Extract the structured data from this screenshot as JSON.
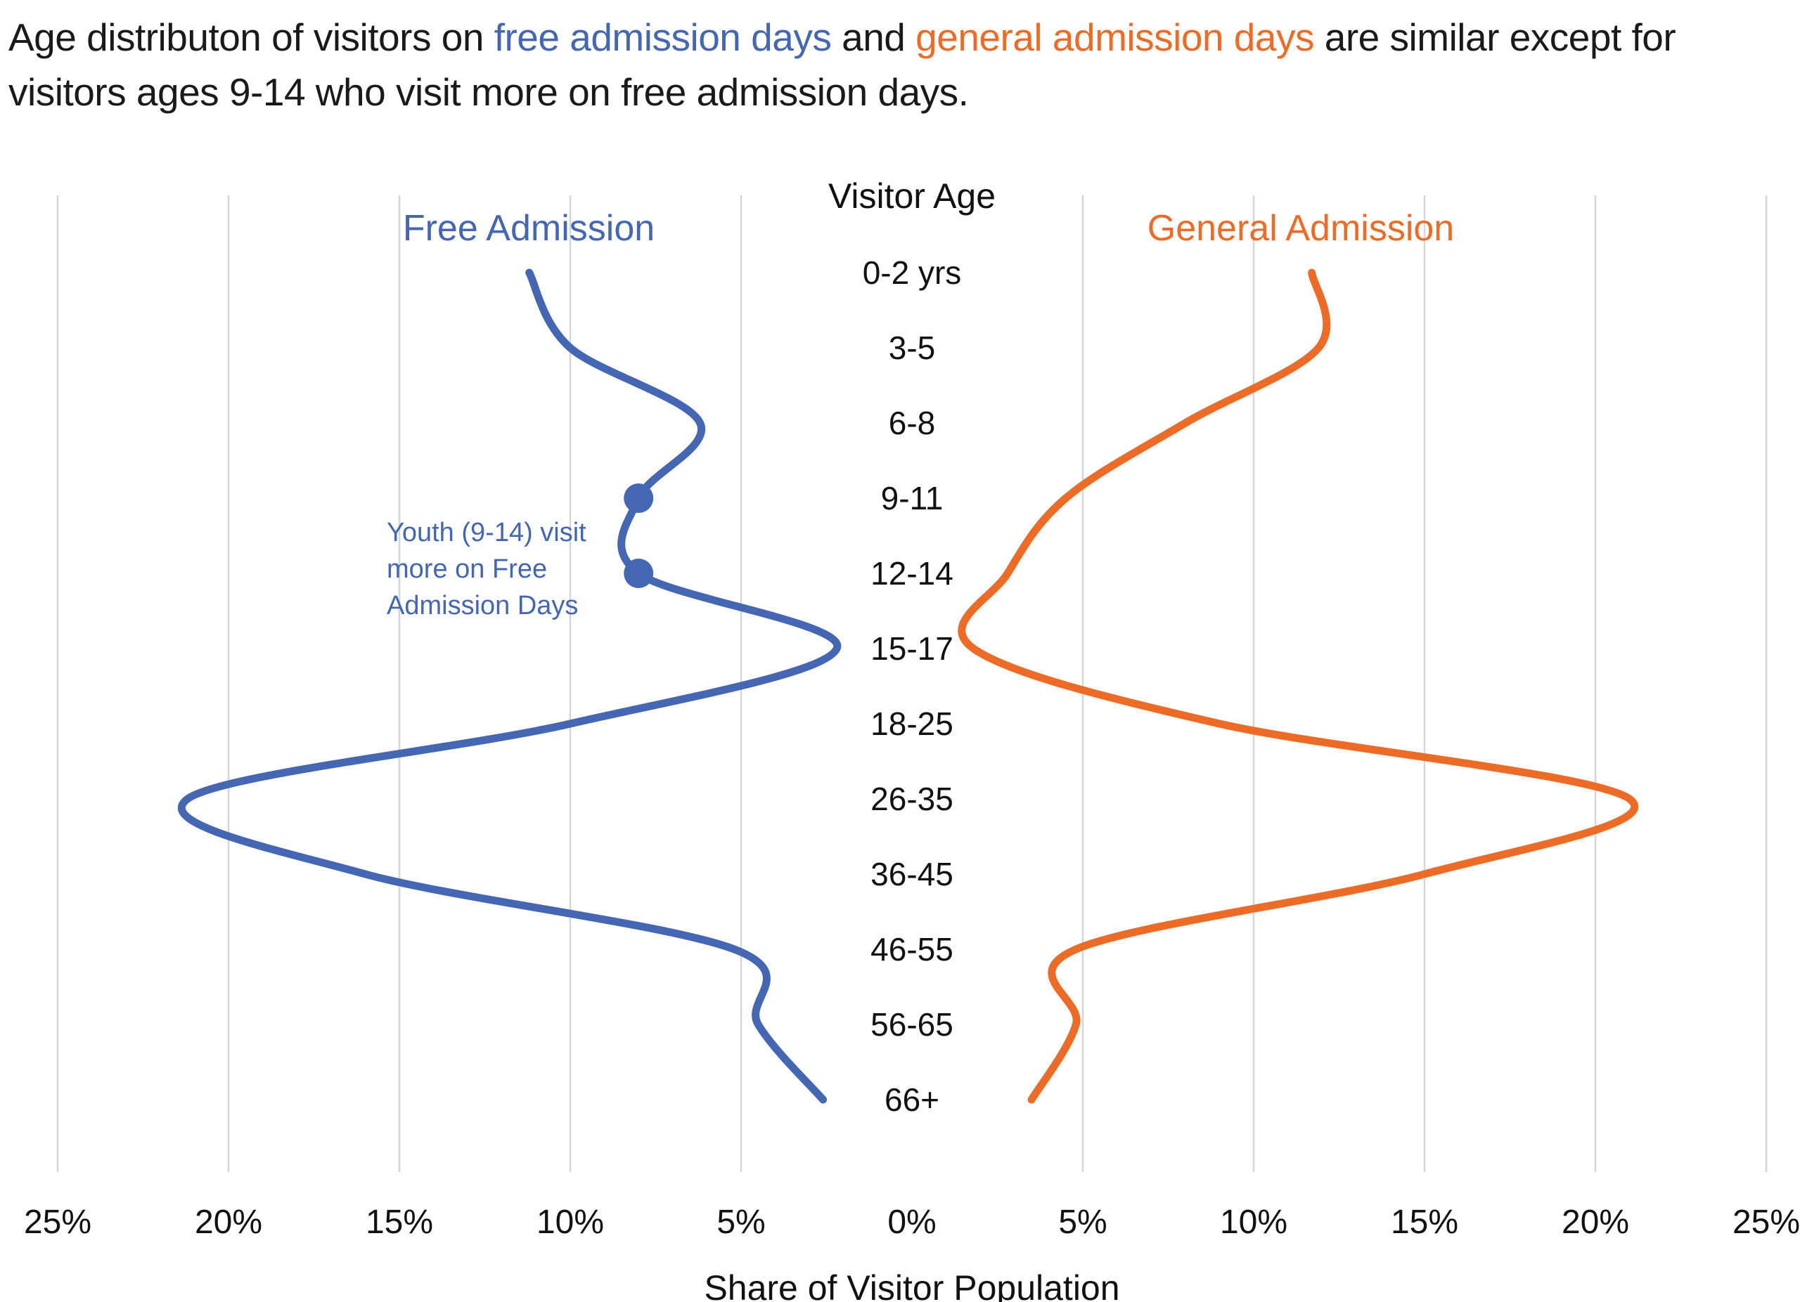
{
  "headline": {
    "part1": "Age distributon of visitors on ",
    "free_phrase": "free admission days",
    "part2": " and ",
    "general_phrase": "general admission days",
    "part3": " are similar except for visitors ages 9-14 who visit more on free admission days."
  },
  "chart_data": {
    "type": "line",
    "orientation": "horizontal-butterfly",
    "center_axis_title": "Visitor Age",
    "xlabel": "Share of Visitor Population",
    "xlim": [
      -25,
      25
    ],
    "x_ticks": [
      -25,
      -20,
      -15,
      -10,
      -5,
      0,
      5,
      10,
      15,
      20,
      25
    ],
    "x_tick_labels": [
      "25%",
      "20%",
      "15%",
      "10%",
      "5%",
      "0%",
      "5%",
      "10%",
      "15%",
      "20%",
      "25%"
    ],
    "categories": [
      "0-2 yrs",
      "3-5",
      "6-8",
      "9-11",
      "12-14",
      "15-17",
      "18-25",
      "26-35",
      "36-45",
      "46-55",
      "56-65",
      "66+"
    ],
    "series": [
      {
        "name": "Free Admission",
        "side": "left",
        "color": "#4466b3",
        "values": [
          11.2,
          10,
          6.2,
          8,
          8,
          2.2,
          10,
          21.2,
          16,
          5.2,
          4.5,
          2.6
        ],
        "highlight_categories": [
          "9-11",
          "12-14"
        ]
      },
      {
        "name": "General Admission",
        "side": "right",
        "color": "#ec6b26",
        "values": [
          11.7,
          11.9,
          8,
          4.5,
          2.8,
          1.8,
          9,
          21,
          15,
          4.8,
          4.8,
          3.5
        ]
      }
    ],
    "annotation": {
      "lines": [
        "Youth (9-14) visit",
        "more on Free",
        "Admission  Days"
      ],
      "color": "#4466b3"
    }
  }
}
